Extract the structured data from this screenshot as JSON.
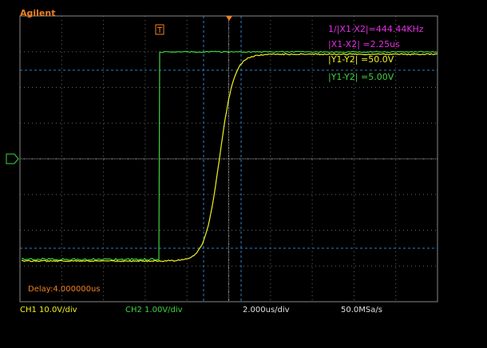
{
  "header": {
    "brand": "Agilent",
    "trigger_marker": "T"
  },
  "measurements": [
    "1/|X1-X2|=444.44KHz",
    "|X1-X2|  =2.25us",
    "|Y1-Y2|  =50.0V",
    "|Y1-Y2|  =5.00V"
  ],
  "delay": "Delay:4.000000us",
  "status_bar": [
    "CH1 10.0V/div",
    "CH2 1.00V/div",
    "2.000us/div",
    "50.0MSa/s"
  ]
}
